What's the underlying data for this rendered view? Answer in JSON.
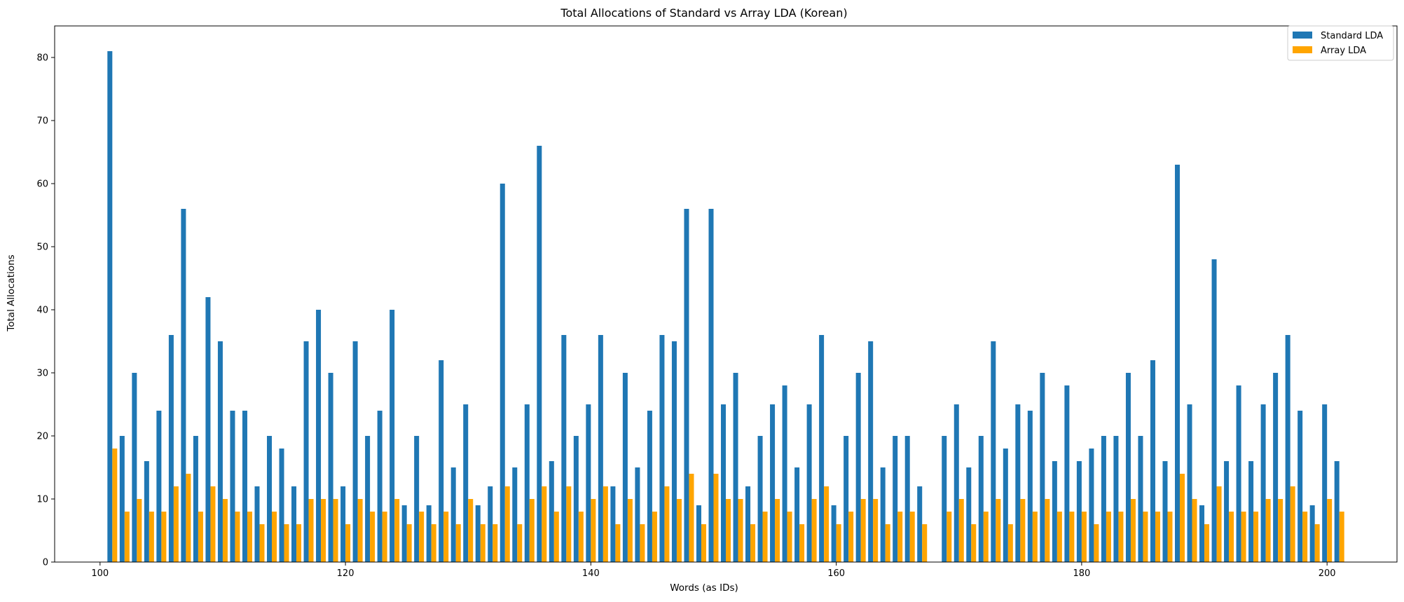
{
  "chart_data": {
    "type": "bar",
    "title": "Total Allocations of Standard vs Array LDA (Korean)",
    "xlabel": "Words (as IDs)",
    "ylabel": "Total Allocations",
    "xlim": [
      96.3,
      205.7
    ],
    "ylim": [
      0,
      85
    ],
    "xticks": [
      100,
      120,
      140,
      160,
      180,
      200
    ],
    "yticks": [
      0,
      10,
      20,
      30,
      40,
      50,
      60,
      70,
      80
    ],
    "grid": false,
    "legend_position": "top-right",
    "bar_group_width": 0.8,
    "x": [
      101,
      102,
      103,
      104,
      105,
      106,
      107,
      108,
      109,
      110,
      111,
      112,
      113,
      114,
      115,
      116,
      117,
      118,
      119,
      120,
      121,
      122,
      123,
      124,
      125,
      126,
      127,
      128,
      129,
      130,
      131,
      132,
      133,
      134,
      135,
      136,
      137,
      138,
      139,
      140,
      141,
      142,
      143,
      144,
      145,
      146,
      147,
      148,
      149,
      150,
      151,
      152,
      153,
      154,
      155,
      156,
      157,
      158,
      159,
      160,
      161,
      162,
      163,
      164,
      165,
      166,
      167,
      168,
      169,
      170,
      171,
      172,
      173,
      174,
      175,
      176,
      177,
      178,
      179,
      180,
      181,
      182,
      183,
      184,
      185,
      186,
      187,
      188,
      189,
      190,
      191,
      192,
      193,
      194,
      195,
      196,
      197,
      198,
      199,
      200,
      201
    ],
    "series": [
      {
        "name": "Standard LDA",
        "color": "#1f77b4",
        "values": [
          81,
          20,
          30,
          16,
          24,
          36,
          56,
          20,
          42,
          35,
          24,
          24,
          12,
          20,
          18,
          12,
          35,
          40,
          30,
          12,
          35,
          20,
          24,
          40,
          9,
          20,
          9,
          32,
          15,
          25,
          9,
          12,
          60,
          15,
          25,
          66,
          16,
          36,
          20,
          25,
          36,
          12,
          30,
          15,
          24,
          36,
          35,
          56,
          9,
          56,
          25,
          30,
          12,
          20,
          25,
          28,
          15,
          25,
          36,
          9,
          20,
          30,
          35,
          15,
          20,
          20,
          12,
          0,
          20,
          25,
          15,
          20,
          35,
          18,
          25,
          24,
          30,
          16,
          28,
          16,
          18,
          20,
          20,
          30,
          20,
          32,
          16,
          63,
          25,
          9,
          48,
          16,
          28,
          16,
          25,
          30,
          36,
          24,
          9,
          25,
          16
        ]
      },
      {
        "name": "Array LDA",
        "color": "#ffa500",
        "values": [
          18,
          8,
          10,
          8,
          8,
          12,
          14,
          8,
          12,
          10,
          8,
          8,
          6,
          8,
          6,
          6,
          10,
          10,
          10,
          6,
          10,
          8,
          8,
          10,
          6,
          8,
          6,
          8,
          6,
          10,
          6,
          6,
          12,
          6,
          10,
          12,
          8,
          12,
          8,
          10,
          12,
          6,
          10,
          6,
          8,
          12,
          10,
          14,
          6,
          14,
          10,
          10,
          6,
          8,
          10,
          8,
          6,
          10,
          12,
          6,
          8,
          10,
          10,
          6,
          8,
          8,
          6,
          0,
          8,
          10,
          6,
          8,
          10,
          6,
          10,
          8,
          10,
          8,
          8,
          8,
          6,
          8,
          8,
          10,
          8,
          8,
          8,
          14,
          10,
          6,
          12,
          8,
          8,
          8,
          10,
          10,
          12,
          8,
          6,
          10,
          8
        ]
      }
    ]
  }
}
